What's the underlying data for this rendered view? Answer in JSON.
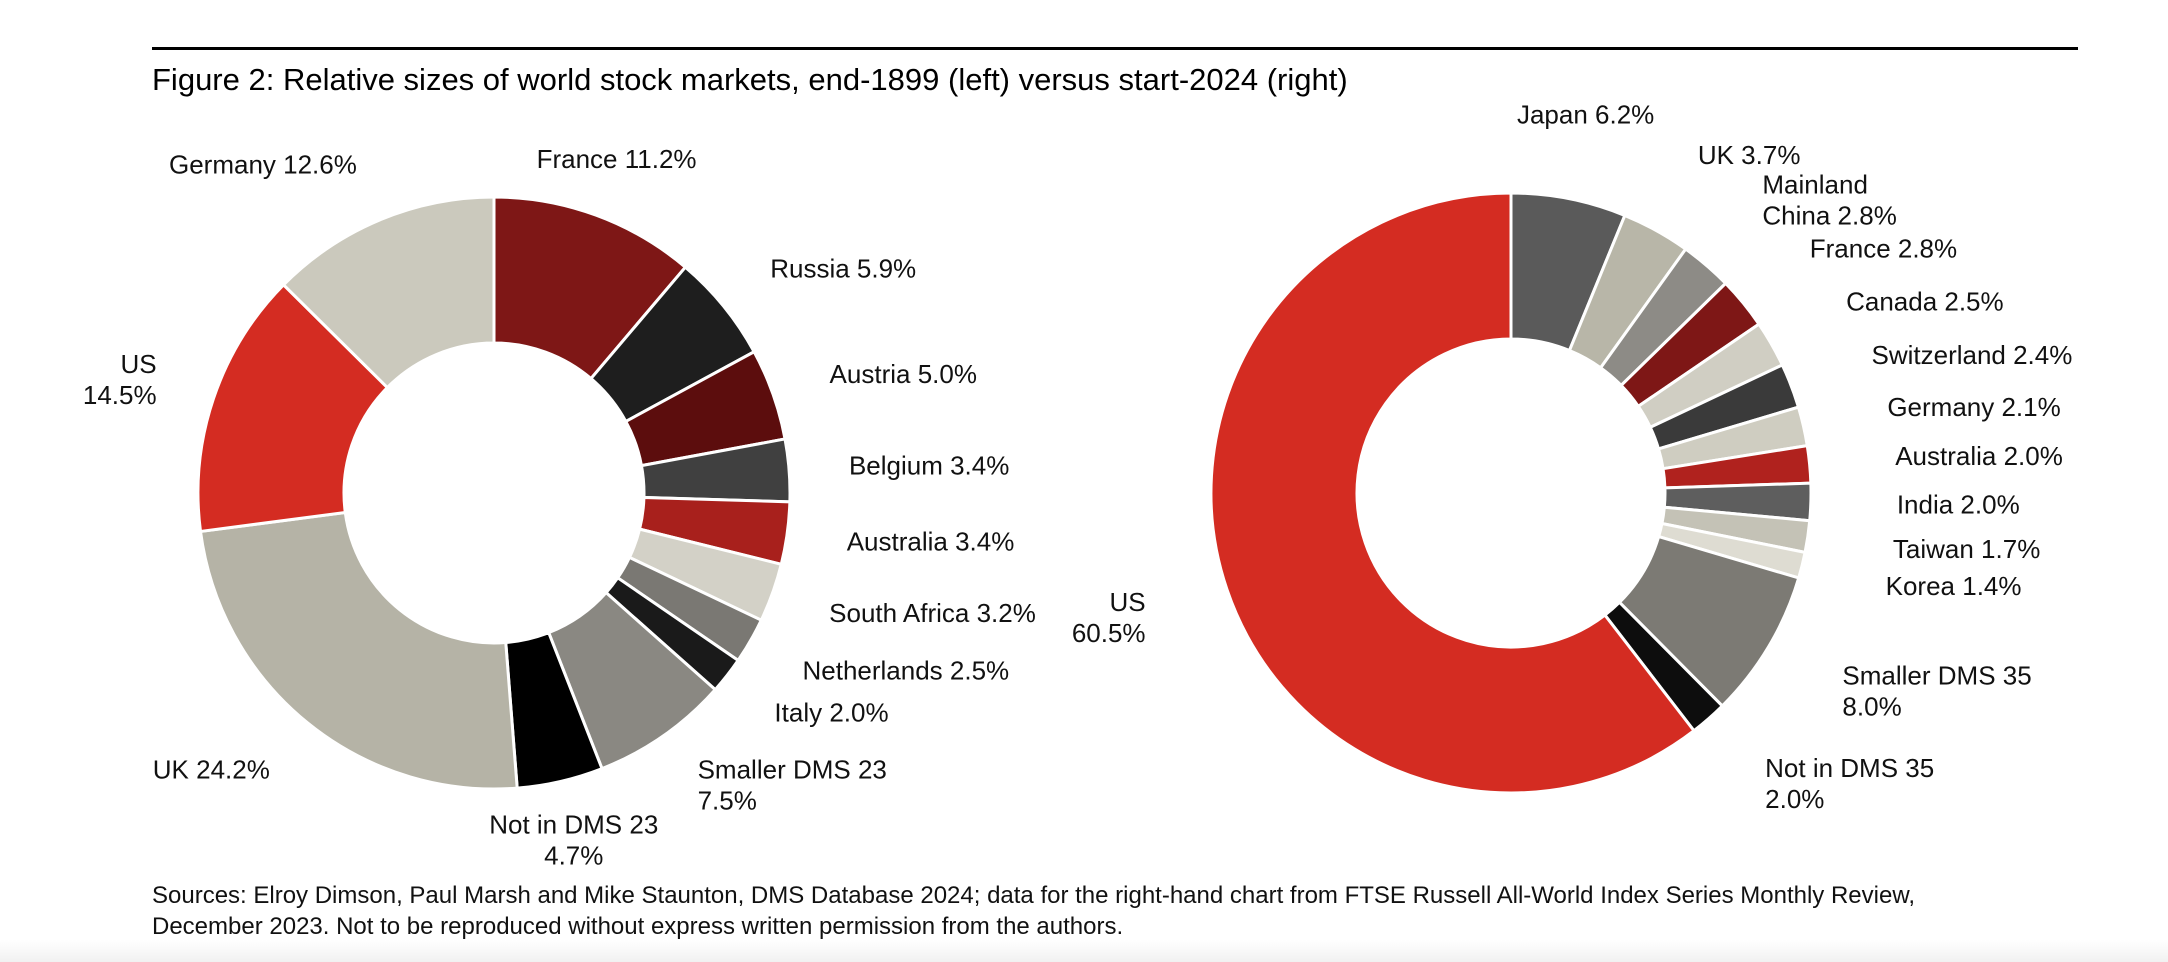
{
  "figure": {
    "title": "Figure 2: Relative sizes of world stock markets, end-1899 (left) versus start-2024 (right)"
  },
  "sources": [
    "Sources: Elroy Dimson, Paul Marsh and Mike Staunton, DMS Database 2024; data for the right-hand chart from FTSE Russell All-World Index Series Monthly Review,",
    "December 2023. Not to be reproduced without express written permission from the authors."
  ],
  "chart_data": [
    {
      "type": "pie",
      "variant": "donut",
      "title": "",
      "start": "top",
      "direction": "clockwise",
      "slices": [
        {
          "name": "France",
          "value": 11.2,
          "label": [
            "France 11.2%"
          ],
          "color": "#7e1716"
        },
        {
          "name": "Russia",
          "value": 5.9,
          "label": [
            "Russia 5.9%"
          ],
          "color": "#1e1e1e"
        },
        {
          "name": "Austria",
          "value": 5.0,
          "label": [
            "Austria 5.0%"
          ],
          "color": "#5c0d0d"
        },
        {
          "name": "Belgium",
          "value": 3.4,
          "label": [
            "Belgium 3.4%"
          ],
          "color": "#404040"
        },
        {
          "name": "Australia",
          "value": 3.4,
          "label": [
            "Australia 3.4%"
          ],
          "color": "#a8201c"
        },
        {
          "name": "South Africa",
          "value": 3.2,
          "label": [
            "South Africa 3.2%"
          ],
          "color": "#d3d1c7"
        },
        {
          "name": "Netherlands",
          "value": 2.5,
          "label": [
            "Netherlands 2.5%"
          ],
          "color": "#7a7873"
        },
        {
          "name": "Italy",
          "value": 2.0,
          "label": [
            "Italy 2.0%"
          ],
          "color": "#1a1a1a"
        },
        {
          "name": "Smaller DMS 23",
          "value": 7.5,
          "label": [
            "Smaller DMS 23",
            "7.5%"
          ],
          "color": "#8a8882"
        },
        {
          "name": "Not in DMS 23",
          "value": 4.7,
          "label": [
            "Not in DMS 23",
            "4.7%"
          ],
          "color": "#000000"
        },
        {
          "name": "UK",
          "value": 24.2,
          "label": [
            "UK 24.2%"
          ],
          "color": "#b5b3a6"
        },
        {
          "name": "US",
          "value": 14.5,
          "label": [
            "US",
            "14.5%"
          ],
          "color": "#d42c22"
        },
        {
          "name": "Germany",
          "value": 12.6,
          "label": [
            "Germany 12.6%"
          ],
          "color": "#cbc9bd"
        }
      ]
    },
    {
      "type": "pie",
      "variant": "donut",
      "title": "",
      "start": "top",
      "direction": "clockwise",
      "slices": [
        {
          "name": "Japan",
          "value": 6.2,
          "label": [
            "Japan 6.2%"
          ],
          "color": "#5a5a5a"
        },
        {
          "name": "UK",
          "value": 3.7,
          "label": [
            "UK 3.7%"
          ],
          "color": "#b8b6a8"
        },
        {
          "name": "Mainland China",
          "value": 2.8,
          "label": [
            "Mainland",
            "China 2.8%"
          ],
          "color": "#8d8b86"
        },
        {
          "name": "France",
          "value": 2.8,
          "label": [
            "France 2.8%"
          ],
          "color": "#7e1716"
        },
        {
          "name": "Canada",
          "value": 2.5,
          "label": [
            "Canada 2.5%"
          ],
          "color": "#d0cec3"
        },
        {
          "name": "Switzerland",
          "value": 2.4,
          "label": [
            "Switzerland 2.4%"
          ],
          "color": "#3a3a3a"
        },
        {
          "name": "Germany",
          "value": 2.1,
          "label": [
            "Germany 2.1%"
          ],
          "color": "#cfcdc1"
        },
        {
          "name": "Australia",
          "value": 2.0,
          "label": [
            "Australia 2.0%"
          ],
          "color": "#b0221e"
        },
        {
          "name": "India",
          "value": 2.0,
          "label": [
            "India 2.0%"
          ],
          "color": "#5e5e5e"
        },
        {
          "name": "Taiwan",
          "value": 1.7,
          "label": [
            "Taiwan 1.7%"
          ],
          "color": "#c4c2b6"
        },
        {
          "name": "Korea",
          "value": 1.4,
          "label": [
            "Korea 1.4%"
          ],
          "color": "#dedcd2"
        },
        {
          "name": "Smaller DMS 35",
          "value": 8.0,
          "label": [
            "Smaller DMS 35",
            "8.0%"
          ],
          "color": "#7c7a74"
        },
        {
          "name": "Not in DMS 35",
          "value": 2.0,
          "label": [
            "Not in DMS 35",
            "2.0%"
          ],
          "color": "#0d0d0d"
        },
        {
          "name": "US",
          "value": 60.5,
          "label": [
            "US",
            "60.5%"
          ],
          "color": "#d42c22"
        }
      ]
    }
  ]
}
